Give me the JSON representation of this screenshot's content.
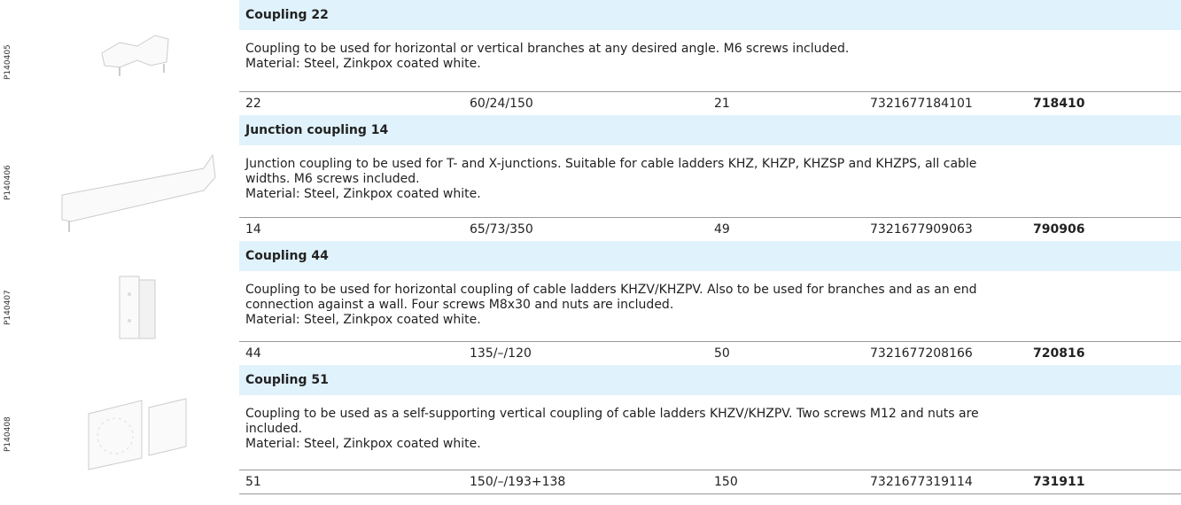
{
  "products": [
    {
      "code": "P140405",
      "title": "Coupling 22",
      "description": [
        "Coupling to be used for horizontal or vertical branches at any desired angle. M6 screws included.",
        "Material: Steel, Zinkpox coated white."
      ],
      "cells": [
        "22",
        "60/24/150",
        "21",
        "7321677184101",
        "718410"
      ]
    },
    {
      "code": "P140406",
      "title": "Junction coupling 14",
      "description": [
        "Junction coupling to be used for T- and X-junctions. Suitable for cable ladders KHZ, KHZP, KHZSP and KHZPS, all cable",
        "widths. M6 screws included.",
        "Material: Steel, Zinkpox coated white."
      ],
      "cells": [
        "14",
        "65/73/350",
        "49",
        "7321677909063",
        "790906"
      ]
    },
    {
      "code": "P140407",
      "title": "Coupling 44",
      "description": [
        "Coupling to be used for horizontal coupling of cable ladders KHZV/KHZPV. Also to be used for branches and as an end",
        "connection against a wall. Four screws M8x30 and nuts are included.",
        "Material: Steel, Zinkpox coated white."
      ],
      "cells": [
        "44",
        "135/–/120",
        "50",
        "7321677208166",
        "720816"
      ]
    },
    {
      "code": "P140408",
      "title": "Coupling 51",
      "description": [
        "Coupling to be used as a self-supporting vertical coupling of cable ladders KHZV/KHZPV. Two screws M12 and nuts are",
        "included.",
        "Material: Steel, Zinkpox coated white."
      ],
      "cells": [
        "51",
        "150/–/193+138",
        "150",
        "7321677319114",
        "731911"
      ]
    }
  ]
}
